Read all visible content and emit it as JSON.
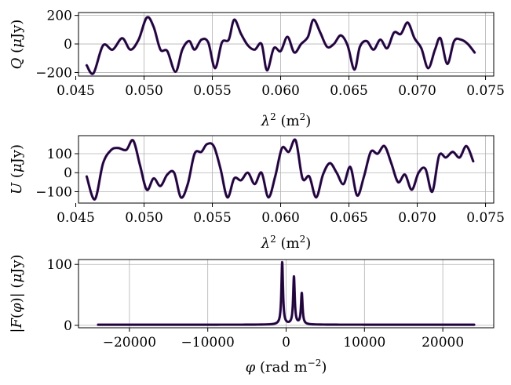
{
  "chart_data": [
    {
      "type": "line",
      "panel": "Q",
      "ylabel": "Q (μJy)",
      "xlabel": "λ² (m²)",
      "xlim": [
        0.0452,
        0.0756
      ],
      "ylim": [
        -225,
        220
      ],
      "xticks": [
        0.045,
        0.05,
        0.055,
        0.06,
        0.065,
        0.07,
        0.075
      ],
      "xtick_labels": [
        "0.045",
        "0.050",
        "0.055",
        "0.060",
        "0.065",
        "0.070",
        "0.075"
      ],
      "yticks": [
        -200,
        0,
        200
      ],
      "ytick_labels": [
        "−200",
        "0",
        "200"
      ],
      "grid": true,
      "series": [
        {
          "color": "#1a0a2e",
          "x": [
            0.0458,
            0.0463,
            0.047,
            0.0477,
            0.0484,
            0.049,
            0.0496,
            0.0502,
            0.0507,
            0.0512,
            0.0517,
            0.0523,
            0.0528,
            0.0533,
            0.0537,
            0.0542,
            0.0547,
            0.0552,
            0.0557,
            0.0562,
            0.0566,
            0.0571,
            0.0576,
            0.0581,
            0.0586,
            0.059,
            0.0595,
            0.06,
            0.0605,
            0.061,
            0.0615,
            0.062,
            0.0624,
            0.0629,
            0.0634,
            0.0639,
            0.0644,
            0.0649,
            0.0654,
            0.0658,
            0.0663,
            0.0668,
            0.0673,
            0.0678,
            0.0683,
            0.0688,
            0.0693,
            0.0698,
            0.0703,
            0.0708,
            0.0713,
            0.0717,
            0.0722,
            0.0727,
            0.0732,
            0.0737,
            0.0742
          ],
          "y": [
            -150,
            -205,
            -10,
            -40,
            40,
            -40,
            30,
            185,
            120,
            -40,
            -50,
            -195,
            -40,
            20,
            -40,
            30,
            10,
            -170,
            10,
            30,
            170,
            70,
            -10,
            -40,
            0,
            -185,
            -30,
            -50,
            50,
            -60,
            0,
            50,
            170,
            80,
            -20,
            0,
            60,
            -10,
            -180,
            -20,
            20,
            -40,
            30,
            -30,
            80,
            70,
            150,
            40,
            -30,
            -170,
            -40,
            40,
            -140,
            20,
            30,
            0,
            -60
          ]
        }
      ]
    },
    {
      "type": "line",
      "panel": "U",
      "ylabel": "U (μJy)",
      "xlabel": "λ² (m²)",
      "xlim": [
        0.0452,
        0.0756
      ],
      "ylim": [
        -160,
        195
      ],
      "xticks": [
        0.045,
        0.05,
        0.055,
        0.06,
        0.065,
        0.07,
        0.075
      ],
      "xtick_labels": [
        "0.045",
        "0.050",
        "0.055",
        "0.060",
        "0.065",
        "0.070",
        "0.075"
      ],
      "yticks": [
        -100,
        0,
        100
      ],
      "ytick_labels": [
        "−100",
        "0",
        "100"
      ],
      "grid": true,
      "series": [
        {
          "color": "#1a0a2e",
          "x": [
            0.0458,
            0.0464,
            0.047,
            0.0476,
            0.0481,
            0.0487,
            0.0492,
            0.0497,
            0.0502,
            0.0507,
            0.0512,
            0.0517,
            0.0522,
            0.0527,
            0.0532,
            0.0537,
            0.0542,
            0.0546,
            0.0551,
            0.0556,
            0.0561,
            0.0566,
            0.0571,
            0.0576,
            0.0581,
            0.0586,
            0.0591,
            0.0596,
            0.0601,
            0.0606,
            0.0611,
            0.0616,
            0.0621,
            0.0626,
            0.0631,
            0.0636,
            0.0641,
            0.0646,
            0.0651,
            0.0656,
            0.0661,
            0.0666,
            0.0671,
            0.0676,
            0.0681,
            0.0686,
            0.0691,
            0.0696,
            0.0701,
            0.0706,
            0.0711,
            0.0716,
            0.0721,
            0.0726,
            0.0731,
            0.0736,
            0.0741
          ],
          "y": [
            -20,
            -140,
            50,
            120,
            130,
            120,
            170,
            40,
            -90,
            -30,
            -70,
            -10,
            0,
            -130,
            -60,
            100,
            110,
            150,
            140,
            20,
            -130,
            -30,
            -40,
            0,
            -60,
            0,
            -130,
            -20,
            130,
            110,
            170,
            -30,
            -20,
            -130,
            -10,
            50,
            0,
            -60,
            30,
            -120,
            -20,
            110,
            100,
            140,
            50,
            -50,
            -10,
            -90,
            0,
            20,
            -100,
            90,
            80,
            110,
            80,
            140,
            60
          ]
        }
      ]
    },
    {
      "type": "line",
      "panel": "FDF",
      "ylabel": "|F(φ)| (μJy)",
      "xlabel": "φ (rad m⁻²)",
      "xlim": [
        -26500,
        26500
      ],
      "ylim": [
        -4,
        108
      ],
      "xticks": [
        -20000,
        -10000,
        0,
        10000,
        20000
      ],
      "xtick_labels": [
        "−20000",
        "−10000",
        "0",
        "10000",
        "20000"
      ],
      "yticks": [
        0,
        100
      ],
      "ytick_labels": [
        "0",
        "100"
      ],
      "grid": true,
      "series": [
        {
          "color": "#1a0a2e",
          "peaks": [
            {
              "x": -500,
              "y": 103
            },
            {
              "x": 1000,
              "y": 79
            },
            {
              "x": 2000,
              "y": 52
            }
          ],
          "x_range": [
            -24000,
            24000
          ],
          "baseline": 1
        }
      ]
    }
  ],
  "colors": {
    "curve_dark": "#1a0a2e",
    "curve_overlay": "#5a1a8a",
    "grid": "#b0b0b0"
  }
}
